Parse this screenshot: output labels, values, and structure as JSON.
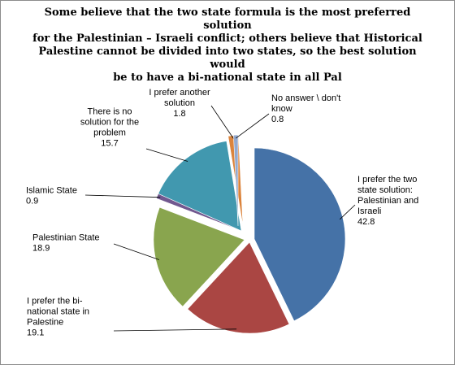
{
  "chart_data": {
    "type": "pie",
    "title": "Some believe that the two state formula is the most preferred solution for the Palestinian – Israeli conflict; others believe that Historical Palestine cannot be divided into two states, so the best solution would be to have a bi-national state in all Pal",
    "title_lines": [
      "Some believe that the two state formula is the most preferred solution",
      "for the Palestinian – Israeli conflict; others believe that Historical",
      "Palestine cannot be divided into two states, so the best solution would",
      "be to have a bi-national state in all Pal"
    ],
    "exploded": true,
    "slices": [
      {
        "label_lines": [
          "I prefer the two",
          "state solution:",
          "Palestinian and",
          "Israeli"
        ],
        "value": 42.8,
        "value_text": "42.8",
        "color": "#4572a7"
      },
      {
        "label_lines": [
          "I prefer the bi-",
          "national state in",
          "Palestine"
        ],
        "value": 19.1,
        "value_text": "19.1",
        "color": "#aa4643"
      },
      {
        "label_lines": [
          "Palestinian State"
        ],
        "value": 18.9,
        "value_text": "18.9",
        "color": "#89a54e"
      },
      {
        "label_lines": [
          "Islamic State"
        ],
        "value": 0.9,
        "value_text": "0.9",
        "color": "#71588f"
      },
      {
        "label_lines": [
          "There is no",
          "solution for the",
          "problem"
        ],
        "value": 15.7,
        "value_text": "15.7",
        "color": "#4198af"
      },
      {
        "label_lines": [
          "I prefer another",
          "solution"
        ],
        "value": 1.8,
        "value_text": "1.8",
        "color": "#db843d"
      },
      {
        "label_lines": [
          "No answer \\ don't",
          "know"
        ],
        "value": 0.8,
        "value_text": "0.8",
        "color": "#93a9cf"
      }
    ]
  }
}
